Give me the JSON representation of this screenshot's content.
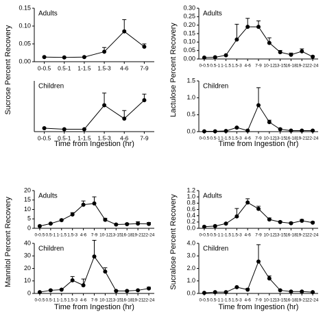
{
  "chart_data": [
    {
      "type": "line",
      "annotation": "Adults",
      "ylabel": "Sucrose Percent Recovery",
      "color": "#000000",
      "categories": [
        "0-0.5",
        "0.5-1",
        "1-1.5",
        "1.5-3",
        "4-6",
        "7-9"
      ],
      "values": [
        0.013,
        0.012,
        0.013,
        0.028,
        0.085,
        0.042
      ],
      "errors": [
        0,
        0,
        0,
        0.012,
        0.033,
        0.008
      ],
      "ylim": [
        0,
        0.15
      ],
      "yticks": [
        {
          "value": 0,
          "label": "0.00"
        },
        0.05,
        {
          "value": 0.1,
          "label": "0.10"
        },
        0.15
      ]
    },
    {
      "type": "line",
      "annotation": "Children",
      "xlabel": "Time from Ingestion (hr)",
      "color": "#000000",
      "categories": [
        "0-0.5",
        "0.5-1",
        "1-1.5",
        "1.5-3",
        "4-6",
        "7-9"
      ],
      "values": [
        0.017,
        0.012,
        0.012,
        0.13,
        0.064,
        0.155
      ],
      "errors": [
        0,
        0,
        0,
        0.06,
        0.04,
        0.03
      ],
      "ylim": [
        0,
        0.25
      ],
      "yticks": []
    },
    {
      "type": "line",
      "annotation": "Adults",
      "ylabel": "Lactulose Percent Recovery",
      "color": "#000000",
      "categories": [
        "0-0.5",
        "0.5-1",
        "1-1.5",
        "1.5-3",
        "4-6",
        "7-9",
        "10-12",
        "13-15",
        "16-18",
        "19-21",
        "22-24"
      ],
      "values": [
        0.008,
        0.01,
        0.022,
        0.115,
        0.19,
        0.19,
        0.095,
        0.04,
        0.025,
        0.045,
        0.013
      ],
      "errors": [
        0,
        0,
        0,
        0.09,
        0.05,
        0.035,
        0.03,
        0.01,
        0.01,
        0.015,
        0.005
      ],
      "ylim": [
        0,
        0.3
      ],
      "yticks": [
        {
          "value": 0,
          "label": "0.00"
        },
        0.05,
        {
          "value": 0.1,
          "label": "0.10"
        },
        0.15,
        {
          "value": 0.2,
          "label": "0.20"
        },
        0.25,
        {
          "value": 0.3,
          "label": "0.30"
        }
      ]
    },
    {
      "type": "line",
      "annotation": "Children",
      "xlabel": "Time from Ingestion (hr)",
      "color": "#000000",
      "categories": [
        "0-0.5",
        "0.5-1",
        "1-1.5",
        "1.5-3",
        "4-6",
        "7-9",
        "10-12",
        "13-15",
        "16-18",
        "19-21",
        "22-24"
      ],
      "values": [
        0.01,
        0.01,
        0.02,
        0.12,
        0.03,
        0.78,
        0.28,
        0.07,
        0.03,
        0.03,
        0.03
      ],
      "errors": [
        0,
        0,
        0,
        0,
        0.02,
        0.52,
        0.06,
        0.03,
        0,
        0,
        0.01
      ],
      "ylim": [
        0,
        1.5
      ],
      "yticks": [
        {
          "value": 0,
          "label": "0.0"
        },
        0.5,
        {
          "value": 1,
          "label": "1.0"
        },
        1.5
      ]
    },
    {
      "type": "line",
      "annotation": "Adults",
      "ylabel": "Mannitol Percent Recovery",
      "color": "#000000",
      "categories": [
        "0-0.5",
        "0.5-1",
        "1-1.5",
        "1.5-3",
        "4-6",
        "7-9",
        "10-12",
        "13-15",
        "16-18",
        "19-21",
        "22-24"
      ],
      "values": [
        1.2,
        2.5,
        4.3,
        7.3,
        12.5,
        13.2,
        4.5,
        2,
        2.2,
        2.5,
        2.3
      ],
      "errors": [
        0,
        0,
        0.5,
        1,
        2,
        3.5,
        0.8,
        0.3,
        0.5,
        1,
        0.8
      ],
      "ylim": [
        0,
        20
      ],
      "yticks": [
        0,
        5,
        10,
        15,
        20
      ]
    },
    {
      "type": "line",
      "annotation": "Children",
      "xlabel": "Time from Ingestion (hr)",
      "color": "#000000",
      "categories": [
        "0-0.5",
        "0.5-1",
        "1-1.5",
        "1.5-3",
        "4-6",
        "7-9",
        "10-12",
        "13-15",
        "16-18",
        "19-21",
        "22-24"
      ],
      "values": [
        1,
        2.5,
        3,
        10.5,
        6.5,
        29.5,
        17.5,
        2,
        2,
        2.5,
        4
      ],
      "errors": [
        0,
        0.5,
        0.5,
        3,
        5,
        13,
        3,
        0.5,
        0,
        0,
        1
      ],
      "ylim": [
        0,
        40
      ],
      "yticks": [
        0,
        10,
        20,
        30,
        40
      ]
    },
    {
      "type": "line",
      "annotation": "Adults",
      "ylabel": "Sucralose Percent Recovery",
      "color": "#000000",
      "categories": [
        "0-0.5",
        "0.5-1",
        "1-1.5",
        "1.5-3",
        "4-6",
        "7-9",
        "10-12",
        "13-15",
        "16-18",
        "19-21",
        "22-24"
      ],
      "values": [
        0.05,
        0.07,
        0.15,
        0.38,
        0.82,
        0.62,
        0.28,
        0.2,
        0.16,
        0.24,
        0.18
      ],
      "errors": [
        0,
        0,
        0.02,
        0.25,
        0.12,
        0.08,
        0.05,
        0.03,
        0.03,
        0.04,
        0.03
      ],
      "ylim": [
        0,
        1.2
      ],
      "yticks": [
        {
          "value": 0,
          "label": "0.0"
        },
        0.2,
        0.4,
        0.6,
        0.8,
        {
          "value": 1,
          "label": "1.0"
        },
        1.2
      ]
    },
    {
      "type": "line",
      "annotation": "Children",
      "xlabel": "Time from Ingestion (hr)",
      "color": "#000000",
      "categories": [
        "0-0.5",
        "0.5-1",
        "1-1.5",
        "1.5-3",
        "4-6",
        "7-9",
        "10-12",
        "13-15",
        "16-18",
        "19-21",
        "22-24"
      ],
      "values": [
        0.05,
        0.1,
        0.1,
        0.5,
        0.3,
        2.55,
        1.2,
        0.25,
        0.15,
        0.15,
        0.1
      ],
      "errors": [
        0,
        0,
        0,
        0,
        0.1,
        1.35,
        0.2,
        0.05,
        0,
        0,
        0
      ],
      "ylim": [
        0,
        4
      ],
      "yticks": [
        {
          "value": 0,
          "label": "0.0"
        },
        {
          "value": 1,
          "label": "1.0"
        },
        {
          "value": 2,
          "label": "2.0"
        },
        {
          "value": 3,
          "label": "3.0"
        },
        {
          "value": 4,
          "label": "4.0"
        }
      ]
    }
  ]
}
